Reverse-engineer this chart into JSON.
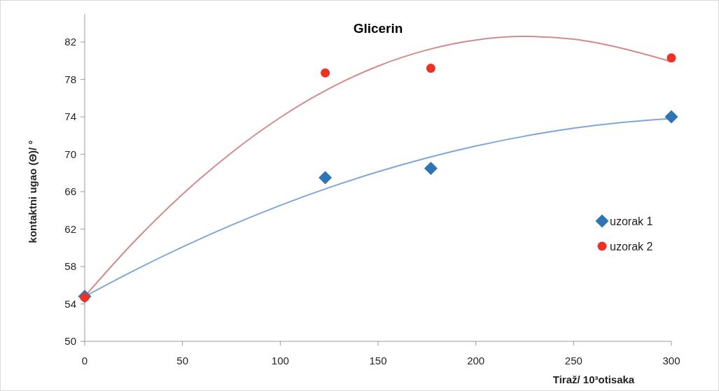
{
  "chart_data": {
    "type": "scatter",
    "title": "Glicerin",
    "xlabel": "Tiraž/ 10³otisaka",
    "ylabel": "kontaktni ugao (Θ)/ °",
    "xlim": [
      0,
      300
    ],
    "xticks": [
      0,
      50,
      100,
      150,
      200,
      250,
      300
    ],
    "ylim": [
      50,
      85
    ],
    "yticks": [
      50,
      54,
      58,
      62,
      66,
      70,
      74,
      78,
      82
    ],
    "grid": false,
    "legend": "right",
    "series": [
      {
        "name": "uzorak 1",
        "type": "scatter",
        "marker": "diamond",
        "color": "#2e75b6",
        "x": [
          0,
          123,
          177,
          300
        ],
        "values": [
          54.8,
          67.5,
          68.5,
          74.0
        ]
      },
      {
        "name": "uzorak 2",
        "type": "scatter",
        "marker": "circle",
        "color": "#ee3124",
        "x": [
          0,
          123,
          177,
          300
        ],
        "values": [
          54.7,
          78.7,
          79.2,
          80.3
        ]
      },
      {
        "type": "line",
        "marker": "none",
        "color": "#7ea6d8",
        "x": [
          0,
          25,
          50,
          75,
          100,
          125,
          150,
          175,
          200,
          225,
          250,
          275,
          300
        ],
        "values": [
          54.8,
          57.55,
          60.09,
          62.42,
          64.54,
          66.44,
          68.13,
          69.61,
          70.88,
          71.94,
          72.79,
          73.41,
          73.82
        ]
      },
      {
        "type": "line",
        "marker": "none",
        "color": "#d48a8a",
        "x": [
          0,
          25,
          50,
          75,
          100,
          125,
          150,
          175,
          200,
          225,
          250,
          275,
          300
        ],
        "values": [
          54.8,
          60.6,
          65.72,
          70.16,
          73.93,
          77.02,
          79.43,
          81.16,
          82.22,
          82.6,
          82.3,
          81.32,
          79.9
        ]
      }
    ]
  }
}
